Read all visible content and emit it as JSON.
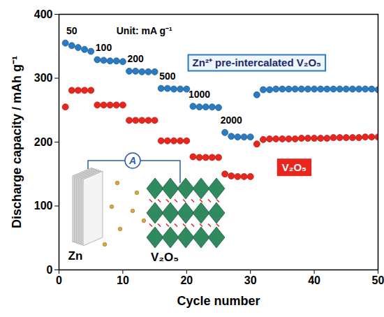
{
  "chart_data": {
    "type": "scatter",
    "x_label": "Cycle number",
    "y_label": "Discharge capacity / mAh g⁻¹",
    "xlim": [
      0,
      50
    ],
    "xticks": [
      0,
      10,
      20,
      30,
      40,
      50
    ],
    "ylim": [
      0,
      400
    ],
    "yticks": [
      0,
      100,
      200,
      300,
      400
    ],
    "x": [
      1,
      2,
      3,
      4,
      5,
      6,
      7,
      8,
      9,
      10,
      11,
      12,
      13,
      14,
      15,
      16,
      17,
      18,
      19,
      20,
      21,
      22,
      23,
      24,
      25,
      26,
      27,
      28,
      29,
      30,
      31,
      32,
      33,
      34,
      35,
      36,
      37,
      38,
      39,
      40,
      41,
      42,
      43,
      44,
      45,
      46,
      47,
      48,
      49,
      50
    ],
    "series": [
      {
        "name": "Zn²⁺ pre-intercalated V₂O₅",
        "color": "#2b7bc0",
        "marker": "circle",
        "values": [
          355,
          351,
          348,
          345,
          342,
          329,
          328,
          327,
          327,
          326,
          311,
          311,
          310,
          310,
          310,
          284,
          284,
          283,
          283,
          283,
          256,
          255,
          255,
          255,
          254,
          215,
          209,
          208,
          208,
          208,
          274,
          282,
          282,
          283,
          283,
          283,
          283,
          283,
          283,
          283,
          283,
          283,
          283,
          283,
          283,
          283,
          283,
          283,
          283,
          282
        ]
      },
      {
        "name": "V₂O₅",
        "color": "#e8261d",
        "marker": "circle",
        "values": [
          255,
          281,
          281,
          281,
          281,
          258,
          258,
          258,
          258,
          258,
          234,
          234,
          234,
          234,
          234,
          202,
          202,
          202,
          202,
          202,
          177,
          176,
          176,
          176,
          176,
          150,
          147,
          146,
          146,
          146,
          197,
          204,
          205,
          205,
          205,
          205,
          205,
          206,
          206,
          206,
          206,
          206,
          207,
          207,
          207,
          207,
          207,
          208,
          208,
          208
        ]
      }
    ],
    "rates": [
      50,
      100,
      200,
      500,
      1000,
      2000
    ],
    "rate_unit": "Unit: mA g⁻¹",
    "inset": {
      "anode": "Zn",
      "cathode": "V₂O₅",
      "meter": "A"
    }
  }
}
